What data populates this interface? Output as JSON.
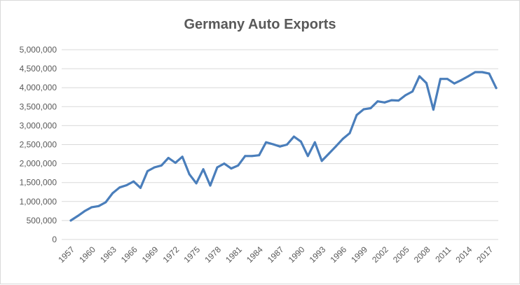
{
  "chart_data": {
    "type": "line",
    "title": "Germany Auto Exports",
    "xlabel": "",
    "ylabel": "",
    "ylim": [
      0,
      5000000
    ],
    "y_ticks": [
      "0",
      "500,000",
      "1,000,000",
      "1,500,000",
      "2,000,000",
      "2,500,000",
      "3,000,000",
      "3,500,000",
      "4,000,000",
      "4,500,000",
      "5,000,000"
    ],
    "x_tick_labels": [
      "1957",
      "1960",
      "1963",
      "1966",
      "1969",
      "1972",
      "1975",
      "1978",
      "1981",
      "1984",
      "1987",
      "1990",
      "1993",
      "1996",
      "1999",
      "2002",
      "2005",
      "2008",
      "2011",
      "2014",
      "2017"
    ],
    "grid": "horizontal",
    "legend": "none",
    "color": "#4a7ebb",
    "x": [
      1957,
      1958,
      1959,
      1960,
      1961,
      1962,
      1963,
      1964,
      1965,
      1966,
      1967,
      1968,
      1969,
      1970,
      1971,
      1972,
      1973,
      1974,
      1975,
      1976,
      1977,
      1978,
      1979,
      1980,
      1981,
      1982,
      1983,
      1984,
      1985,
      1986,
      1987,
      1988,
      1989,
      1990,
      1991,
      1992,
      1993,
      1994,
      1995,
      1996,
      1997,
      1998,
      1999,
      2000,
      2001,
      2002,
      2003,
      2004,
      2005,
      2006,
      2007,
      2008,
      2009,
      2010,
      2011,
      2012,
      2013,
      2014,
      2015,
      2016,
      2017,
      2018
    ],
    "values": [
      500000,
      620000,
      750000,
      850000,
      880000,
      980000,
      1220000,
      1370000,
      1430000,
      1530000,
      1360000,
      1800000,
      1900000,
      1950000,
      2150000,
      2020000,
      2180000,
      1720000,
      1480000,
      1850000,
      1420000,
      1900000,
      2000000,
      1870000,
      1950000,
      2200000,
      2200000,
      2220000,
      2560000,
      2510000,
      2450000,
      2500000,
      2710000,
      2580000,
      2200000,
      2560000,
      2070000,
      2260000,
      2450000,
      2650000,
      2800000,
      3280000,
      3430000,
      3460000,
      3640000,
      3610000,
      3670000,
      3660000,
      3800000,
      3900000,
      4300000,
      4120000,
      3420000,
      4230000,
      4230000,
      4110000,
      4200000,
      4300000,
      4410000,
      4410000,
      4370000,
      3990000
    ]
  }
}
